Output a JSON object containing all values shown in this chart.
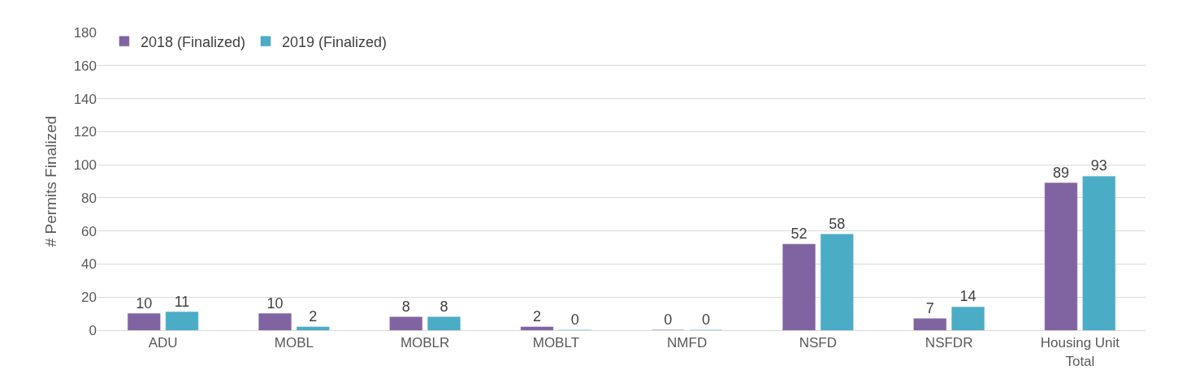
{
  "chart_data": {
    "type": "bar",
    "ylabel": "# Permits Finalized",
    "categories": [
      "ADU",
      "MOBL",
      "MOBLR",
      "MOBLT",
      "NMFD",
      "NSFD",
      "NSFDR",
      "Housing Unit Total"
    ],
    "series": [
      {
        "name": "2018 (Finalized)",
        "color": "#8064a2",
        "values": [
          10,
          10,
          8,
          2,
          0,
          52,
          7,
          89
        ]
      },
      {
        "name": "2019 (Finalized)",
        "color": "#4bacc6",
        "values": [
          11,
          2,
          8,
          0,
          0,
          58,
          14,
          93
        ]
      }
    ],
    "ylim": [
      0,
      180
    ],
    "yticks": [
      0,
      20,
      40,
      60,
      80,
      100,
      120,
      140,
      160,
      180
    ],
    "grid": "y",
    "legend": "top left",
    "data_labels": true
  }
}
